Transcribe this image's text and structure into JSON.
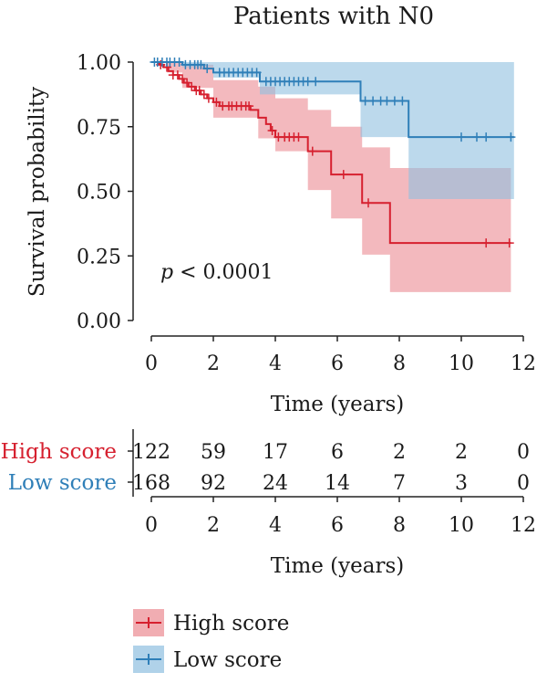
{
  "chart_data": {
    "type": "kaplan-meier",
    "title": "Patients with N0",
    "xlabel": "Time (years)",
    "ylabel": "Survival probability",
    "xlim": [
      0,
      12
    ],
    "ylim": [
      0,
      1
    ],
    "x_ticks": [
      0,
      2,
      4,
      6,
      8,
      10,
      12
    ],
    "x_tick_labels": [
      "0",
      "2",
      "4",
      "6",
      "8",
      "10",
      "12"
    ],
    "y_ticks": [
      0,
      0.25,
      0.5,
      0.75,
      1.0
    ],
    "y_tick_labels": [
      "0.00",
      "0.25",
      "0.50",
      "0.75",
      "1.00"
    ],
    "annotation": {
      "p_symbol": "p",
      "p_text": " < 0.0001"
    },
    "grid": false,
    "series": [
      {
        "name": "High score",
        "color": "#d6202f",
        "band_color": "#eb8a92",
        "steps": [
          [
            0,
            1.0
          ],
          [
            0.25,
            0.99
          ],
          [
            0.4,
            0.98
          ],
          [
            0.55,
            0.965
          ],
          [
            0.7,
            0.95
          ],
          [
            0.9,
            0.935
          ],
          [
            1.05,
            0.92
          ],
          [
            1.2,
            0.905
          ],
          [
            1.4,
            0.89
          ],
          [
            1.6,
            0.875
          ],
          [
            1.8,
            0.86
          ],
          [
            2.0,
            0.845
          ],
          [
            2.2,
            0.83
          ],
          [
            3.2,
            0.815
          ],
          [
            3.45,
            0.785
          ],
          [
            3.7,
            0.76
          ],
          [
            3.85,
            0.735
          ],
          [
            4.0,
            0.71
          ],
          [
            5.05,
            0.655
          ],
          [
            5.8,
            0.565
          ],
          [
            6.8,
            0.455
          ],
          [
            7.7,
            0.3
          ],
          [
            11.6,
            0.3
          ]
        ],
        "ci_upper": [
          [
            0,
            1.0
          ],
          [
            1.0,
            0.99
          ],
          [
            2.0,
            0.93
          ],
          [
            3.45,
            0.905
          ],
          [
            4.0,
            0.86
          ],
          [
            5.05,
            0.815
          ],
          [
            5.8,
            0.75
          ],
          [
            6.8,
            0.67
          ],
          [
            7.7,
            0.59
          ],
          [
            11.6,
            0.59
          ]
        ],
        "ci_lower": [
          [
            0,
            1.0
          ],
          [
            0.5,
            0.96
          ],
          [
            1.0,
            0.9
          ],
          [
            2.0,
            0.785
          ],
          [
            3.45,
            0.705
          ],
          [
            4.0,
            0.655
          ],
          [
            5.05,
            0.505
          ],
          [
            5.8,
            0.395
          ],
          [
            6.8,
            0.255
          ],
          [
            7.7,
            0.11
          ],
          [
            11.6,
            0.11
          ]
        ],
        "censor_times": [
          0.3,
          0.5,
          0.7,
          0.85,
          1.0,
          1.15,
          1.3,
          1.45,
          1.55,
          1.7,
          1.85,
          2.1,
          2.3,
          2.5,
          2.6,
          2.75,
          2.9,
          3.05,
          3.15,
          3.9,
          4.1,
          4.3,
          4.45,
          4.6,
          4.75,
          5.2,
          6.2,
          7.0,
          10.8,
          11.55
        ]
      },
      {
        "name": "Low score",
        "color": "#2f7fb8",
        "band_color": "#8fbfdf",
        "steps": [
          [
            0,
            1.0
          ],
          [
            1.0,
            0.99
          ],
          [
            1.7,
            0.975
          ],
          [
            2.0,
            0.96
          ],
          [
            3.5,
            0.925
          ],
          [
            6.75,
            0.85
          ],
          [
            8.3,
            0.71
          ],
          [
            11.7,
            0.71
          ]
        ],
        "ci_upper": [
          [
            0,
            1.0
          ],
          [
            11.7,
            1.0
          ]
        ],
        "ci_lower": [
          [
            0,
            1.0
          ],
          [
            1.0,
            0.98
          ],
          [
            2.0,
            0.94
          ],
          [
            3.5,
            0.875
          ],
          [
            6.75,
            0.71
          ],
          [
            8.3,
            0.47
          ],
          [
            11.7,
            0.47
          ]
        ],
        "censor_times": [
          0.1,
          0.2,
          0.35,
          0.5,
          0.6,
          0.75,
          0.9,
          1.1,
          1.25,
          1.4,
          1.5,
          1.6,
          1.8,
          2.2,
          2.35,
          2.5,
          2.65,
          2.8,
          2.95,
          3.1,
          3.25,
          3.4,
          3.7,
          3.85,
          4.0,
          4.15,
          4.3,
          4.45,
          4.6,
          4.75,
          4.9,
          5.05,
          5.3,
          6.9,
          7.15,
          7.4,
          7.6,
          7.85,
          8.1,
          10.0,
          10.5,
          10.8,
          11.6
        ]
      }
    ],
    "risk_table": {
      "xlabel": "Time (years)",
      "times": [
        0,
        2,
        4,
        6,
        8,
        10,
        12
      ],
      "time_labels": [
        "0",
        "2",
        "4",
        "6",
        "8",
        "10",
        "12"
      ],
      "rows": [
        {
          "label": "High score",
          "color": "#d6202f",
          "counts": [
            "122",
            "59",
            "17",
            "6",
            "2",
            "2",
            "0"
          ]
        },
        {
          "label": "Low score",
          "color": "#2f7fb8",
          "counts": [
            "168",
            "92",
            "24",
            "14",
            "7",
            "3",
            "0"
          ]
        }
      ]
    },
    "legend": {
      "placement": "bottom-left",
      "items": [
        {
          "label": "High score",
          "color": "#d6202f",
          "band_color": "#eb8a92"
        },
        {
          "label": "Low score",
          "color": "#2f7fb8",
          "band_color": "#8fbfdf"
        }
      ]
    }
  }
}
